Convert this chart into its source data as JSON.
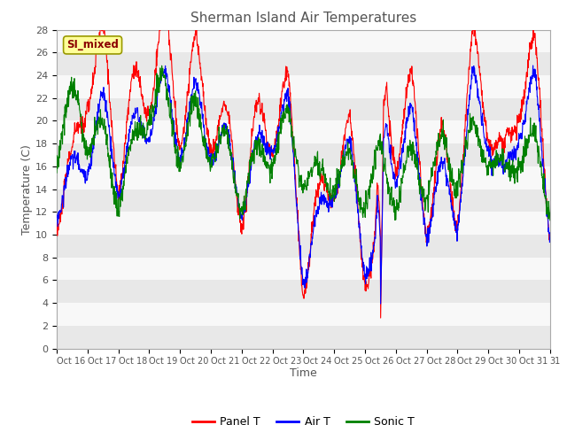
{
  "title": "Sherman Island Air Temperatures",
  "xlabel": "Time",
  "ylabel": "Temperature (C)",
  "ylim": [
    0,
    28
  ],
  "yticks": [
    0,
    2,
    4,
    6,
    8,
    10,
    12,
    14,
    16,
    18,
    20,
    22,
    24,
    26,
    28
  ],
  "xtick_labels": [
    "Oct 16",
    "Oct 17",
    "Oct 18",
    "Oct 19",
    "Oct 20",
    "Oct 21",
    "Oct 22",
    "Oct 23",
    "Oct 24",
    "Oct 25",
    "Oct 26",
    "Oct 27",
    "Oct 28",
    "Oct 29",
    "Oct 30",
    "Oct 31"
  ],
  "watermark_text": "SI_mixed",
  "legend_entries": [
    "Panel T",
    "Air T",
    "Sonic T"
  ],
  "line_colors": [
    "red",
    "blue",
    "green"
  ],
  "background_color": "#ffffff",
  "band_colors": [
    "#e8e8e8",
    "#f8f8f8"
  ],
  "title_color": "#555555",
  "label_color": "#555555"
}
